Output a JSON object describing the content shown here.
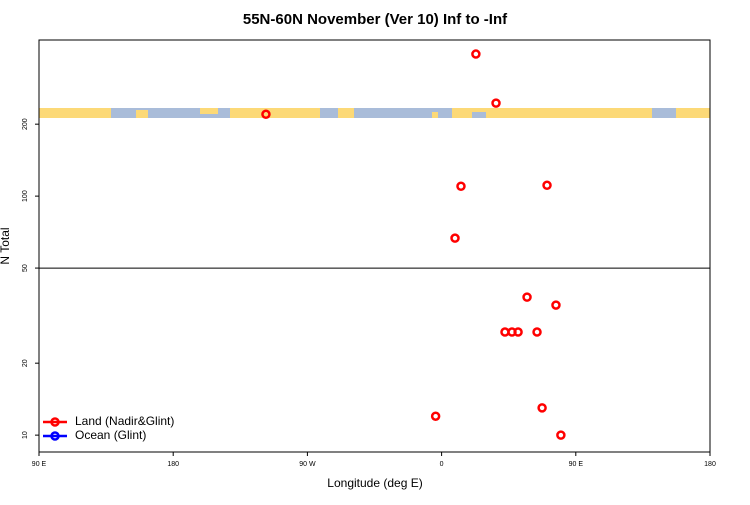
{
  "chart_data": {
    "type": "scatter",
    "title": "55N-60N November (Ver 10)   Inf to -Inf",
    "x_label": "Longitude (deg E)",
    "y_label": "N Total",
    "yscale": "log",
    "xlim": [
      -270,
      180
    ],
    "ylim": [
      8.5,
      450
    ],
    "xticks": [
      {
        "value": -270,
        "label": "90 E"
      },
      {
        "value": -180,
        "label": "180"
      },
      {
        "value": -90,
        "label": "90 W"
      },
      0,
      {
        "value": 90,
        "label": "90 E"
      },
      {
        "value": 180,
        "label": "180"
      }
    ],
    "yticks": [
      10,
      20,
      50,
      100,
      200
    ],
    "hline": 50,
    "legend": "bottom-left",
    "series": [
      {
        "name": "Land (Nadir&Glint)",
        "color": "#ff0000",
        "x": [
          23,
          36.5,
          -117.8,
          13,
          70.7,
          9,
          57.3,
          76.7,
          42.5,
          47.2,
          51.3,
          64,
          -4,
          67.4,
          80
        ],
        "values": [
          393,
          245,
          220,
          110,
          111,
          66.7,
          37.8,
          35,
          27,
          27,
          27,
          27,
          12,
          13,
          10
        ]
      },
      {
        "name": "Ocean (Glint)",
        "color": "#0000ff",
        "x": [],
        "values": []
      }
    ]
  }
}
